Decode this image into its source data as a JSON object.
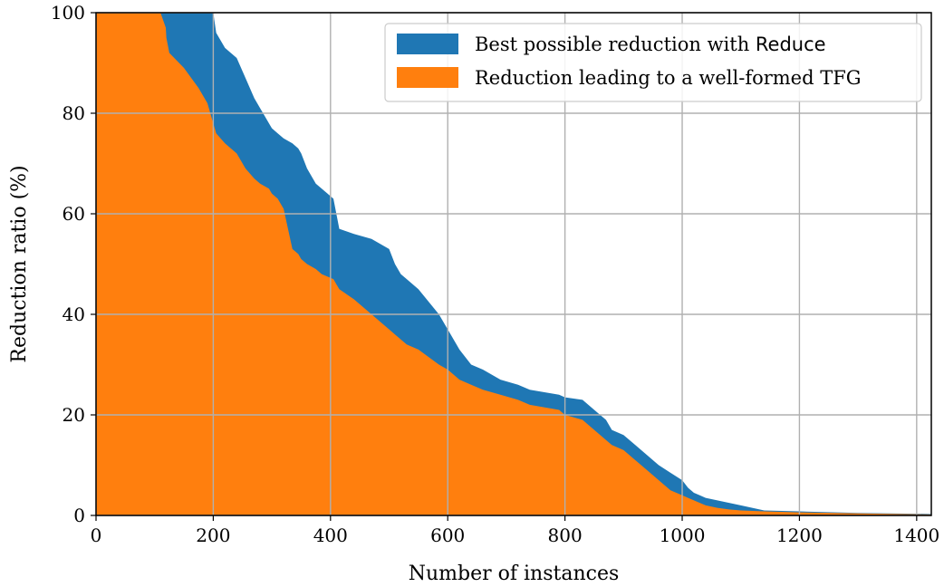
{
  "chart_data": {
    "type": "area",
    "xlabel": "Number of instances",
    "ylabel": "Reduction ratio (%)",
    "xlim": [
      0,
      1425
    ],
    "ylim": [
      0,
      100
    ],
    "x_ticks": [
      0,
      200,
      400,
      600,
      800,
      1000,
      1200,
      1400
    ],
    "y_ticks": [
      0,
      20,
      40,
      60,
      80,
      100
    ],
    "grid": true,
    "legend_position": "top-right",
    "series": [
      {
        "name": "Best possible reduction with Reduce",
        "legend_prefix": "Best possible reduction with ",
        "legend_keyword": "Reduce",
        "color": "#1f77b4",
        "x": [
          0,
          110,
          119,
          120,
          125,
          200,
          205,
          220,
          240,
          255,
          270,
          280,
          295,
          300,
          310,
          320,
          335,
          345,
          350,
          360,
          375,
          385,
          395,
          405,
          410,
          415,
          440,
          470,
          500,
          510,
          520,
          530,
          550,
          585,
          600,
          620,
          640,
          660,
          690,
          720,
          740,
          790,
          800,
          830,
          850,
          870,
          880,
          900,
          920,
          940,
          960,
          980,
          1000,
          1010,
          1020,
          1030,
          1040,
          1060,
          1080,
          1100,
          1140,
          1200,
          1300,
          1424
        ],
        "y": [
          100,
          100,
          100,
          100,
          100,
          100,
          96,
          93,
          91,
          87,
          83,
          81,
          78,
          77,
          76,
          75,
          74,
          73,
          72,
          69,
          66,
          65,
          64,
          63,
          60,
          57,
          56,
          55,
          53,
          50,
          48,
          47,
          45,
          40,
          37,
          33,
          30,
          29,
          27,
          26,
          25,
          24,
          23.5,
          23,
          21,
          19,
          17,
          16,
          14,
          12,
          10,
          8.5,
          7,
          5.5,
          4.5,
          4,
          3.5,
          3,
          2.5,
          2,
          1,
          0.8,
          0.5,
          0.3
        ]
      },
      {
        "name": "Reduction leading to a well-formed TFG",
        "color": "#ff7f0e",
        "x": [
          0,
          110,
          119,
          120,
          125,
          150,
          175,
          190,
          200,
          205,
          220,
          240,
          255,
          270,
          280,
          295,
          300,
          310,
          320,
          335,
          345,
          350,
          360,
          375,
          385,
          395,
          405,
          410,
          415,
          440,
          470,
          500,
          510,
          520,
          530,
          550,
          585,
          600,
          620,
          640,
          660,
          690,
          720,
          740,
          790,
          800,
          830,
          850,
          870,
          880,
          900,
          920,
          940,
          960,
          980,
          1000,
          1010,
          1020,
          1030,
          1040,
          1060,
          1080,
          1100,
          1140,
          1200,
          1300,
          1424
        ],
        "y": [
          100,
          100,
          97,
          95,
          92,
          89,
          85,
          82,
          78,
          76,
          74,
          72,
          69,
          67,
          66,
          65,
          64,
          63,
          61,
          53,
          52,
          51,
          50,
          49,
          48,
          47.5,
          47,
          46,
          45,
          43,
          40,
          37,
          36,
          35,
          34,
          33,
          30,
          29,
          27,
          26,
          25,
          24,
          23,
          22,
          21,
          20,
          19,
          17,
          15,
          14,
          13,
          11,
          9,
          7,
          5,
          4,
          3.5,
          3,
          2.5,
          2,
          1.5,
          1.2,
          1,
          0.8,
          0.6,
          0.4,
          0.2
        ]
      }
    ]
  }
}
